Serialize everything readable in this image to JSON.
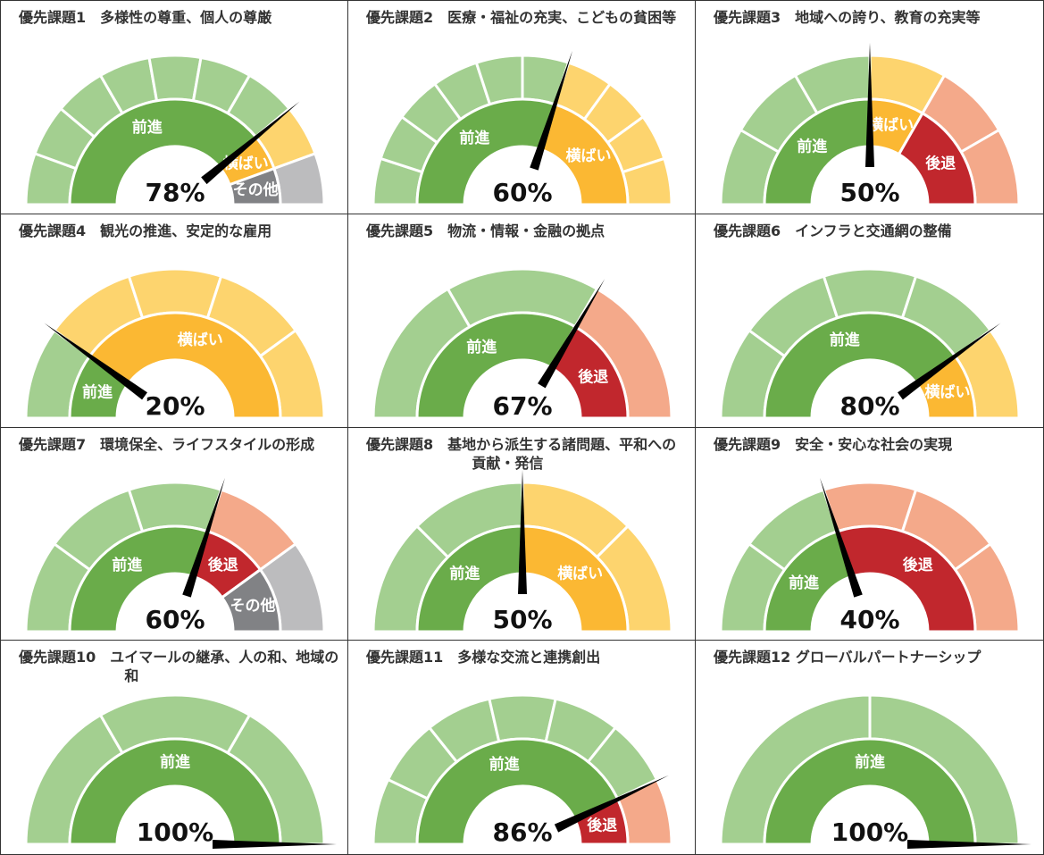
{
  "chart_data": [
    {
      "type": "gauge",
      "title": "優先課題1　多様性の尊重、個人の尊厳",
      "value": 78,
      "value_label": "78%",
      "segments": [
        {
          "name": "前進",
          "count": 7,
          "color": "#a3cf90",
          "inner_color": "#6aac4a"
        },
        {
          "name": "横ばい",
          "count": 1,
          "color": "#fdd46e",
          "inner_color": "#fbb833"
        },
        {
          "name": "その他",
          "count": 1,
          "color": "#bcbcbe",
          "inner_color": "#818285"
        }
      ]
    },
    {
      "type": "gauge",
      "title": "優先課題2　医療・福祉の充実、こどもの貧困等",
      "value": 60,
      "value_label": "60%",
      "segments": [
        {
          "name": "前進",
          "count": 6,
          "color": "#a3cf90",
          "inner_color": "#6aac4a"
        },
        {
          "name": "横ばい",
          "count": 4,
          "color": "#fdd46e",
          "inner_color": "#fbb833"
        }
      ]
    },
    {
      "type": "gauge",
      "title": "優先課題3　地域への誇り、教育の充実等",
      "value": 50,
      "value_label": "50%",
      "segments": [
        {
          "name": "前進",
          "count": 3,
          "color": "#a3cf90",
          "inner_color": "#6aac4a"
        },
        {
          "name": "横ばい",
          "count": 1,
          "color": "#fdd46e",
          "inner_color": "#fbb833"
        },
        {
          "name": "後退",
          "count": 2,
          "color": "#f4a98a",
          "inner_color": "#c1272d"
        }
      ]
    },
    {
      "type": "gauge",
      "title": "優先課題4　観光の推進、安定的な雇用",
      "value": 20,
      "value_label": "20%",
      "segments": [
        {
          "name": "前進",
          "count": 1,
          "color": "#a3cf90",
          "inner_color": "#6aac4a"
        },
        {
          "name": "横ばい",
          "count": 4,
          "color": "#fdd46e",
          "inner_color": "#fbb833"
        }
      ]
    },
    {
      "type": "gauge",
      "title": "優先課題5　物流・情報・金融の拠点",
      "value": 67,
      "value_label": "67%",
      "segments": [
        {
          "name": "前進",
          "count": 2,
          "color": "#a3cf90",
          "inner_color": "#6aac4a"
        },
        {
          "name": "後退",
          "count": 1,
          "color": "#f4a98a",
          "inner_color": "#c1272d"
        }
      ]
    },
    {
      "type": "gauge",
      "title": "優先課題6　インフラと交通網の整備",
      "value": 80,
      "value_label": "80%",
      "segments": [
        {
          "name": "前進",
          "count": 4,
          "color": "#a3cf90",
          "inner_color": "#6aac4a"
        },
        {
          "name": "横ばい",
          "count": 1,
          "color": "#fdd46e",
          "inner_color": "#fbb833"
        }
      ]
    },
    {
      "type": "gauge",
      "title": "優先課題7　環境保全、ライフスタイルの形成",
      "value": 60,
      "value_label": "60%",
      "segments": [
        {
          "name": "前進",
          "count": 3,
          "color": "#a3cf90",
          "inner_color": "#6aac4a"
        },
        {
          "name": "後退",
          "count": 1,
          "color": "#f4a98a",
          "inner_color": "#c1272d"
        },
        {
          "name": "その他",
          "count": 1,
          "color": "#bcbcbe",
          "inner_color": "#818285"
        }
      ]
    },
    {
      "type": "gauge",
      "title": "優先課題8　基地から派生する諸問題、平和への貢献・発信",
      "value": 50,
      "value_label": "50%",
      "segments": [
        {
          "name": "前進",
          "count": 2,
          "color": "#a3cf90",
          "inner_color": "#6aac4a"
        },
        {
          "name": "横ばい",
          "count": 2,
          "color": "#fdd46e",
          "inner_color": "#fbb833"
        }
      ]
    },
    {
      "type": "gauge",
      "title": "優先課題9　安全・安心な社会の実現",
      "value": 40,
      "value_label": "40%",
      "segments": [
        {
          "name": "前進",
          "count": 2,
          "color": "#a3cf90",
          "inner_color": "#6aac4a"
        },
        {
          "name": "後退",
          "count": 3,
          "color": "#f4a98a",
          "inner_color": "#c1272d"
        }
      ]
    },
    {
      "type": "gauge",
      "title": "優先課題10　ユイマールの継承、人の和、地域の和",
      "value": 100,
      "value_label": "100%",
      "segments": [
        {
          "name": "前進",
          "count": 3,
          "color": "#a3cf90",
          "inner_color": "#6aac4a"
        }
      ]
    },
    {
      "type": "gauge",
      "title": "優先課題11　多様な交流と連携創出",
      "value": 86,
      "value_label": "86%",
      "segments": [
        {
          "name": "前進",
          "count": 6,
          "color": "#a3cf90",
          "inner_color": "#6aac4a"
        },
        {
          "name": "後退",
          "count": 1,
          "color": "#f4a98a",
          "inner_color": "#c1272d"
        }
      ]
    },
    {
      "type": "gauge",
      "title": "優先課題12 グローバルパートナーシップ",
      "value": 100,
      "value_label": "100%",
      "segments": [
        {
          "name": "前進",
          "count": 2,
          "color": "#a3cf90",
          "inner_color": "#6aac4a"
        }
      ]
    }
  ]
}
